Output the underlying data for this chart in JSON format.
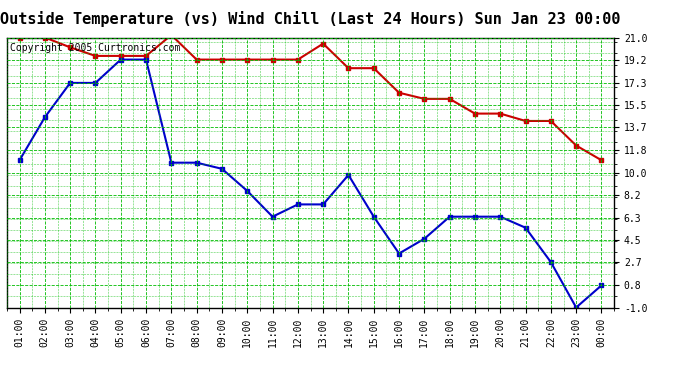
{
  "title": "Outside Temperature (vs) Wind Chill (Last 24 Hours) Sun Jan 23 00:00",
  "copyright_text": "Copyright 2005 Curtronics.com",
  "x_labels": [
    "01:00",
    "02:00",
    "03:00",
    "04:00",
    "05:00",
    "06:00",
    "07:00",
    "08:00",
    "09:00",
    "10:00",
    "11:00",
    "12:00",
    "13:00",
    "14:00",
    "15:00",
    "16:00",
    "17:00",
    "18:00",
    "19:00",
    "20:00",
    "21:00",
    "22:00",
    "23:00",
    "00:00"
  ],
  "temp_y": [
    21.0,
    21.0,
    20.2,
    19.5,
    19.5,
    19.5,
    21.2,
    19.2,
    19.2,
    19.2,
    19.2,
    19.2,
    20.5,
    18.5,
    18.5,
    16.5,
    16.0,
    16.0,
    14.8,
    14.8,
    14.2,
    14.2,
    12.2,
    11.0
  ],
  "wind_chill_y": [
    11.0,
    14.5,
    17.3,
    17.3,
    19.2,
    19.2,
    10.8,
    10.8,
    10.3,
    8.5,
    6.4,
    7.4,
    7.4,
    9.8,
    6.4,
    3.4,
    4.6,
    6.4,
    6.4,
    6.4,
    5.5,
    2.7,
    -1.0,
    0.8
  ],
  "ylim_min": -1.0,
  "ylim_max": 21.0,
  "y_ticks": [
    -1.0,
    0.8,
    2.7,
    4.5,
    6.3,
    8.2,
    10.0,
    11.8,
    13.7,
    15.5,
    17.3,
    19.2,
    21.0
  ],
  "temp_color": "#cc0000",
  "wind_color": "#0000cc",
  "bg_color": "#ffffff",
  "plot_bg_color": "#ffffff",
  "grid_major_color": "#00bb00",
  "grid_minor_color": "#00bb00",
  "title_fontsize": 11,
  "copyright_fontsize": 7,
  "tick_fontsize": 7
}
